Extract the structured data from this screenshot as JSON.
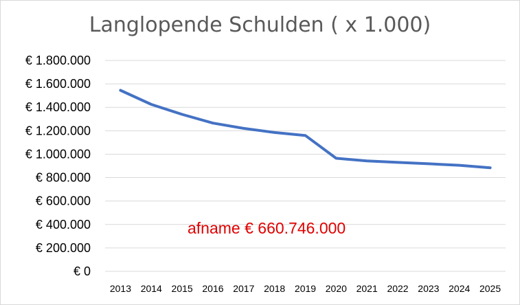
{
  "chart_data": {
    "type": "line",
    "title": "Langlopende Schulden ( x 1.000)",
    "xlabel": "",
    "ylabel": "",
    "x": [
      "2013",
      "2014",
      "2015",
      "2016",
      "2017",
      "2018",
      "2019",
      "2020",
      "2021",
      "2022",
      "2023",
      "2024",
      "2025"
    ],
    "series": [
      {
        "values": [
          1545000,
          1425000,
          1340000,
          1265000,
          1220000,
          1185000,
          1160000,
          965000,
          942000,
          930000,
          918000,
          905000,
          884000
        ],
        "color": "#4472c4"
      }
    ],
    "yticks": [
      "€ 0",
      "€ 200.000",
      "€ 400.000",
      "€ 600.000",
      "€ 800.000",
      "€ 1.000.000",
      "€ 1.200.000",
      "€ 1.400.000",
      "€ 1.600.000",
      "€ 1.800.000"
    ],
    "ylim": [
      0,
      1800000
    ],
    "grid": true,
    "legend": "none",
    "annotation": "afname € 660.746.000",
    "annotation_color": "#e00000"
  }
}
